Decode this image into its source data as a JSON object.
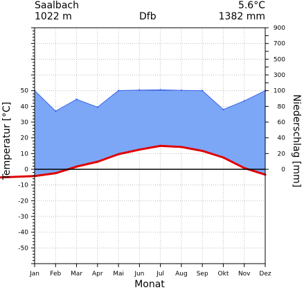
{
  "header": {
    "station": "Saalbach",
    "elevation": "1022 m",
    "climate_class": "Dfb",
    "mean_temperature": "5.6°C",
    "annual_precipitation": "1382 mm"
  },
  "chart_data": {
    "type": "line",
    "title": "",
    "categories": [
      "Jan",
      "Feb",
      "Mar",
      "Apr",
      "Mai",
      "Jun",
      "Jul",
      "Aug",
      "Sep",
      "Okt",
      "Nov",
      "Dez"
    ],
    "xlabel": "Monat",
    "ylabel_left": "Temperatur [°C]",
    "ylabel_right": "Niederschlag [mm]",
    "temperature_axis": {
      "min": -60,
      "max": 90,
      "tick_labels": [
        -50,
        -40,
        -30,
        -20,
        -10,
        0,
        10,
        20,
        30,
        40,
        50
      ]
    },
    "precipitation_axis": {
      "tick_labels": [
        0,
        20,
        40,
        60,
        80,
        100,
        300,
        500,
        700,
        900
      ],
      "scale_note": "0-100 mm plotted 2 mm per °C; above 100 mm plotted 20 mm per °C"
    },
    "series": [
      {
        "name": "",
        "unit": "°C",
        "color": "#e00000",
        "values": [
          -4.3,
          -2.5,
          1.7,
          4.8,
          9.6,
          12.5,
          14.9,
          14.2,
          11.7,
          7.5,
          0.8,
          -3.4
        ]
      },
      {
        "name": "",
        "unit": "mm",
        "color": "#2f6bff",
        "values": [
          100,
          74,
          89,
          79,
          101,
          107,
          110,
          104,
          100,
          76,
          87,
          100
        ]
      }
    ],
    "colors": {
      "humid_fill": "#7ca7f7",
      "perhumid_fill": "#1e3fe0",
      "temperature_line": "#e00000",
      "grid": "#bcbcbc"
    },
    "grid": true
  }
}
